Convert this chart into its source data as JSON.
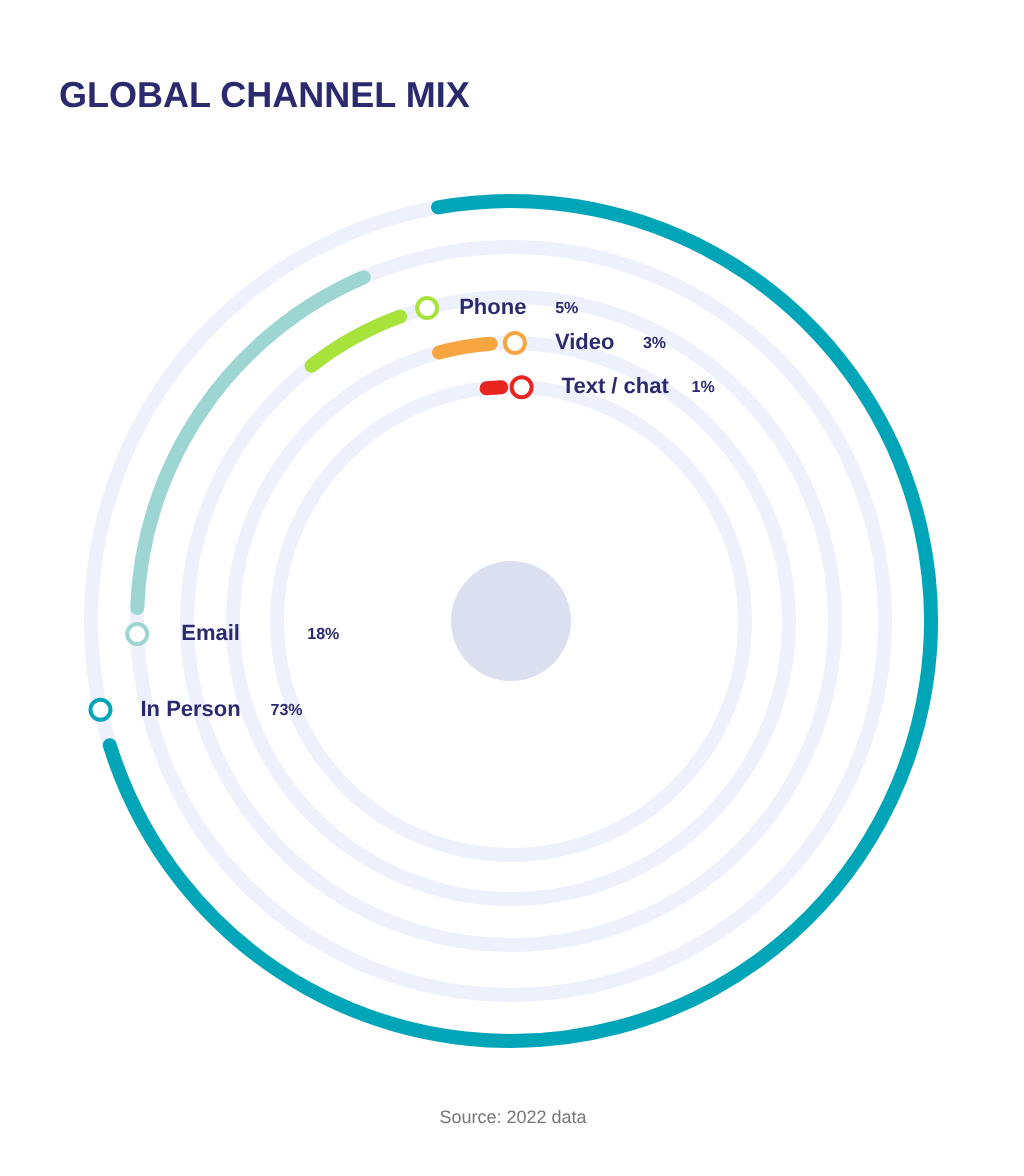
{
  "chart_data": {
    "type": "other",
    "title": "GLOBAL CHANNEL MIX",
    "categories": [
      "In Person",
      "Email",
      "Phone",
      "Video",
      "Text / chat"
    ],
    "values": [
      73,
      18,
      5,
      3,
      1
    ],
    "value_labels": [
      "73%",
      "18%",
      "5%",
      "3%",
      "1%"
    ],
    "colors": [
      "#00a5b8",
      "#9dd5d3",
      "#a8e33c",
      "#f7a541",
      "#e8251f"
    ],
    "annotations": [
      "Source: 2022 data"
    ]
  }
}
